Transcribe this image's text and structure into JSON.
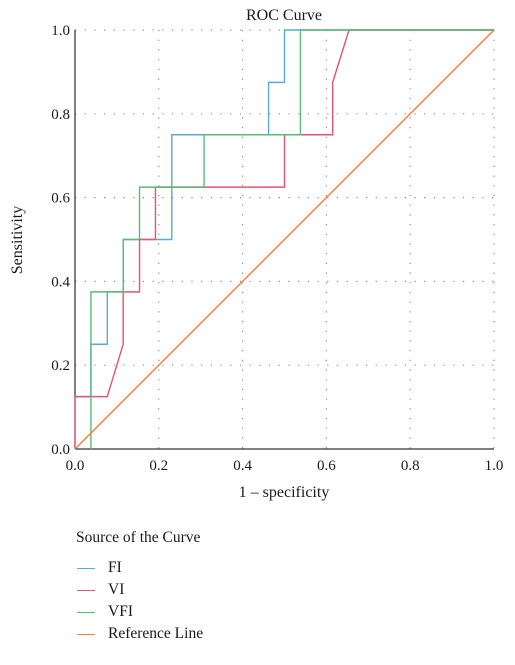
{
  "chart_data": {
    "type": "line",
    "title": "ROC Curve",
    "xlabel": "1 – specificity",
    "ylabel": "Sensitivity",
    "xlim": [
      0,
      1
    ],
    "ylim": [
      0,
      1
    ],
    "x_ticks": [
      "0.0",
      "0.2",
      "0.4",
      "0.6",
      "0.8",
      "1.0"
    ],
    "y_ticks": [
      "0.0",
      "0.2",
      "0.4",
      "0.6",
      "0.8",
      "1.0"
    ],
    "grid": true,
    "legend_title": "Source of the Curve",
    "legend_position": "bottom-left",
    "series": [
      {
        "name": "FI",
        "color": "#5aaad6",
        "x": [
          0,
          0,
          0.038,
          0.038,
          0.077,
          0.077,
          0.115,
          0.115,
          0.192,
          0.192,
          0.231,
          0.231,
          0.462,
          0.462,
          0.5,
          0.5,
          1.0
        ],
        "y": [
          0,
          0.125,
          0.125,
          0.25,
          0.25,
          0.375,
          0.375,
          0.5,
          0.5,
          0.5,
          0.5,
          0.75,
          0.75,
          0.875,
          0.875,
          1.0,
          1.0
        ]
      },
      {
        "name": "VI",
        "color": "#e0566f",
        "x": [
          0,
          0,
          0.077,
          0.115,
          0.115,
          0.154,
          0.154,
          0.192,
          0.192,
          0.231,
          0.5,
          0.5,
          0.615,
          0.615,
          0.654,
          1.0
        ],
        "y": [
          0,
          0.125,
          0.125,
          0.25,
          0.375,
          0.375,
          0.5,
          0.5,
          0.625,
          0.625,
          0.625,
          0.75,
          0.75,
          0.875,
          1.0,
          1.0
        ]
      },
      {
        "name": "VFI",
        "color": "#5cba78",
        "x": [
          0.038,
          0.038,
          0.115,
          0.115,
          0.154,
          0.154,
          0.308,
          0.308,
          0.538,
          0.538,
          1.0
        ],
        "y": [
          0,
          0.375,
          0.375,
          0.5,
          0.5,
          0.625,
          0.625,
          0.75,
          0.75,
          1.0,
          1.0
        ]
      },
      {
        "name": "Reference Line",
        "color": "#f07f3c",
        "x": [
          0,
          1
        ],
        "y": [
          0,
          1
        ]
      }
    ]
  }
}
